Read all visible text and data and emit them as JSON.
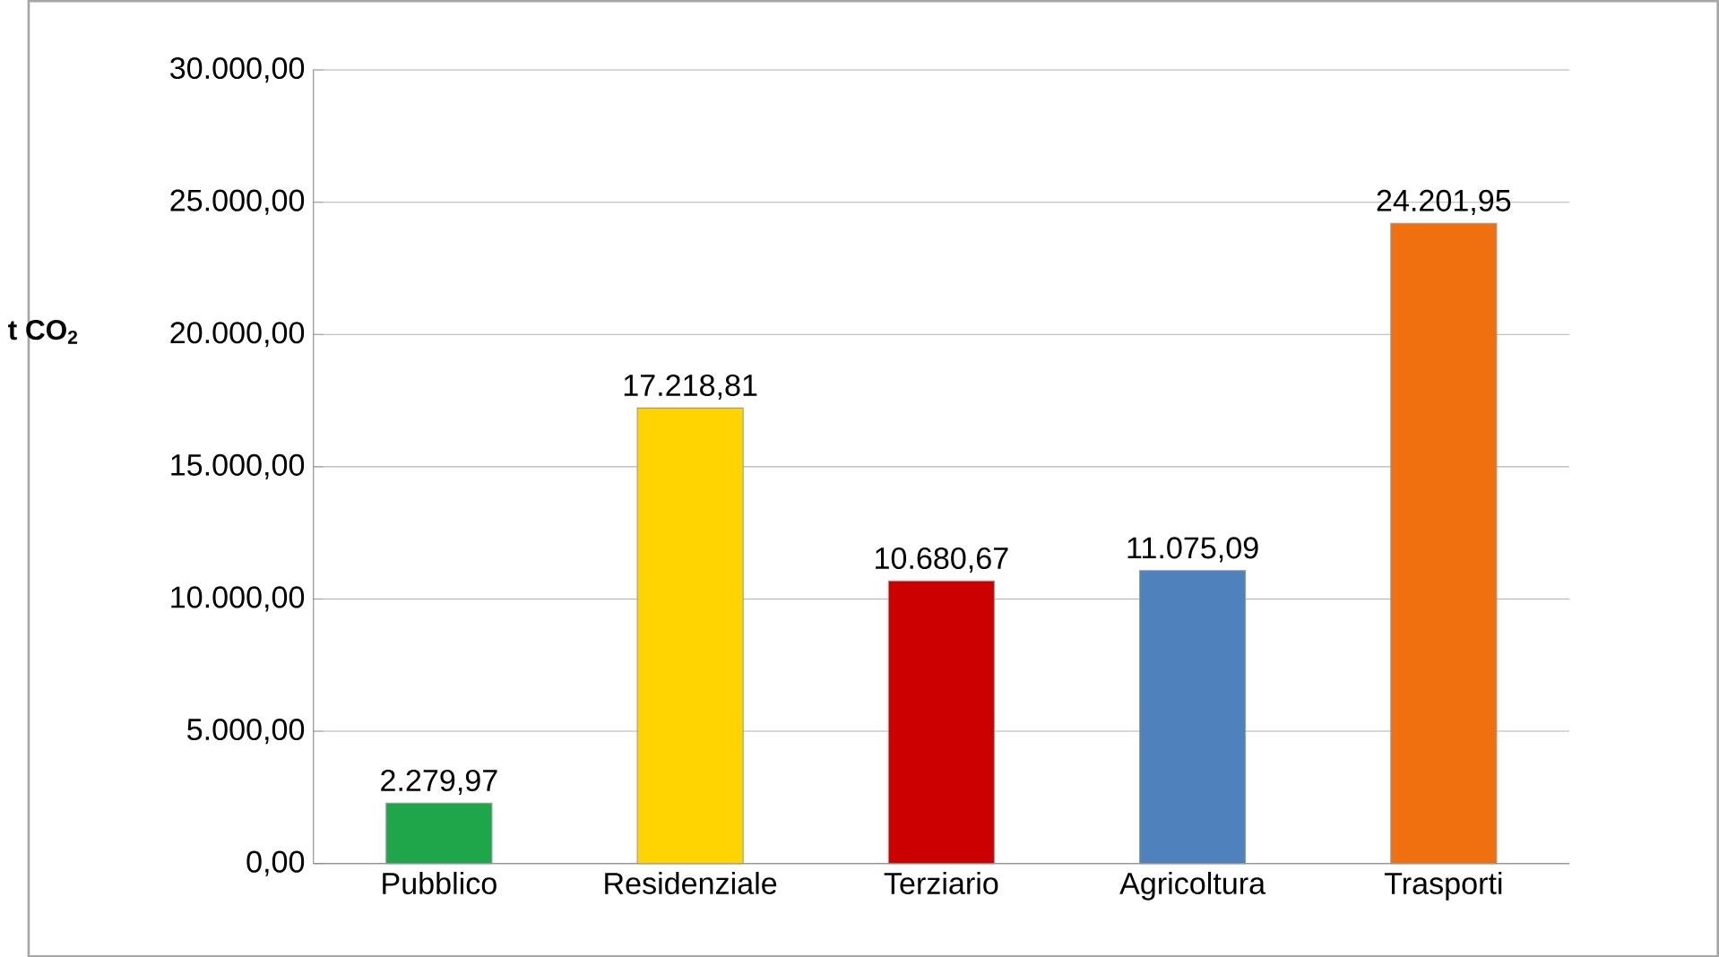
{
  "chart_data": {
    "type": "bar",
    "ylabel": "t CO$_{2}$",
    "categories": [
      "Pubblico",
      "Residenziale",
      "Terziario",
      "Agricoltura",
      "Trasporti"
    ],
    "values": [
      2279.97,
      17218.81,
      10680.67,
      11075.09,
      24201.95
    ],
    "value_labels": [
      "2.279,97",
      "17.218,81",
      "10.680,67",
      "11.075,09",
      "24.201,95"
    ],
    "colors": [
      "#1fa64a",
      "#ffd400",
      "#cc0000",
      "#4f81bd",
      "#f07010"
    ],
    "ylim": [
      0,
      30000
    ],
    "yticks": [
      {
        "value": 0,
        "label": "0,00"
      },
      {
        "value": 5000,
        "label": "5.000,00"
      },
      {
        "value": 10000,
        "label": "10.000,00"
      },
      {
        "value": 15000,
        "label": "15.000,00"
      },
      {
        "value": 20000,
        "label": "20.000,00"
      },
      {
        "value": 25000,
        "label": "25.000,00"
      },
      {
        "value": 30000,
        "label": "30.000,00"
      }
    ],
    "grid": "y"
  }
}
